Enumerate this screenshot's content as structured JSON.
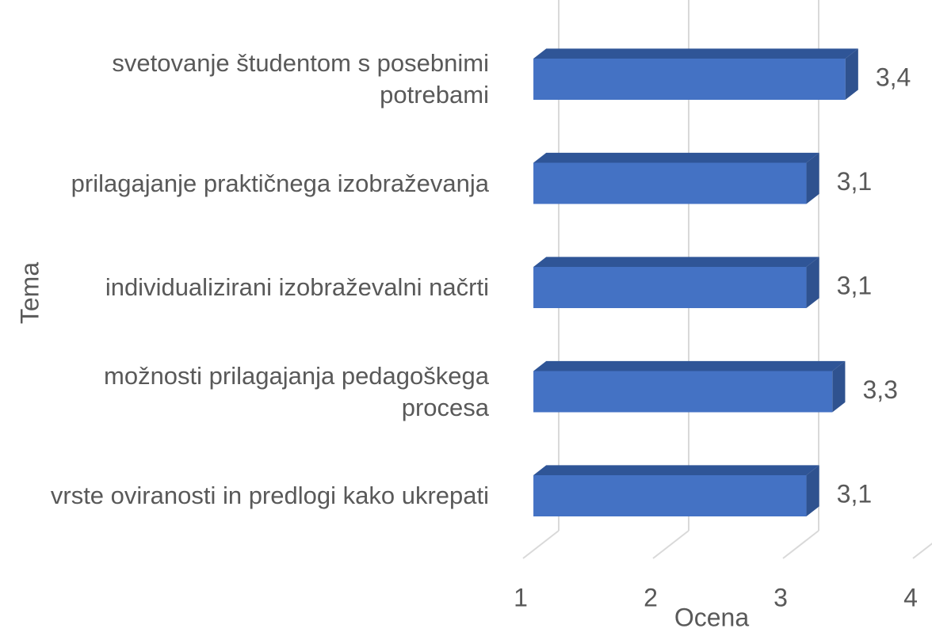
{
  "chart_data": {
    "type": "bar3d_horizontal",
    "categories": [
      "svetovanje študentom s posebnimi potrebami",
      "prilagajanje praktičnega izobraževanja",
      "individualizirani izobraževalni načrti",
      "možnosti prilagajanja pedagoškega procesa",
      "vrste oviranosti in predlogi kako ukrepati"
    ],
    "values": [
      3.4,
      3.1,
      3.1,
      3.3,
      3.1
    ],
    "value_labels": [
      "3,4",
      "3,1",
      "3,1",
      "3,3",
      "3,1"
    ],
    "color": "#4472c4",
    "xlim": [
      1,
      4
    ],
    "xticks": [
      1,
      2,
      3,
      4
    ],
    "xlabel": "Ocena",
    "ylabel": "Tema",
    "grid": true
  }
}
